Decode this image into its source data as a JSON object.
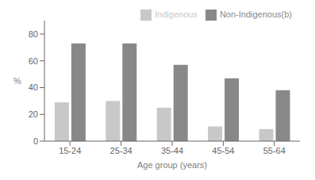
{
  "chart_data": {
    "type": "bar",
    "categories": [
      "15-24",
      "25-34",
      "35-44",
      "45-54",
      "55-64"
    ],
    "series": [
      {
        "name": "Indigenous",
        "color": "#c8c8c8",
        "values": [
          29,
          30,
          25,
          11,
          9
        ]
      },
      {
        "name": "Non-Indigenous(b)",
        "color": "#888888",
        "values": [
          73,
          73,
          57,
          47,
          38
        ]
      }
    ],
    "xlabel": "Age group (years)",
    "ylabel": "%",
    "ylim": [
      0,
      90
    ],
    "yticks": [
      0,
      20,
      40,
      60,
      80
    ],
    "grid": false,
    "legend": "upper right"
  }
}
